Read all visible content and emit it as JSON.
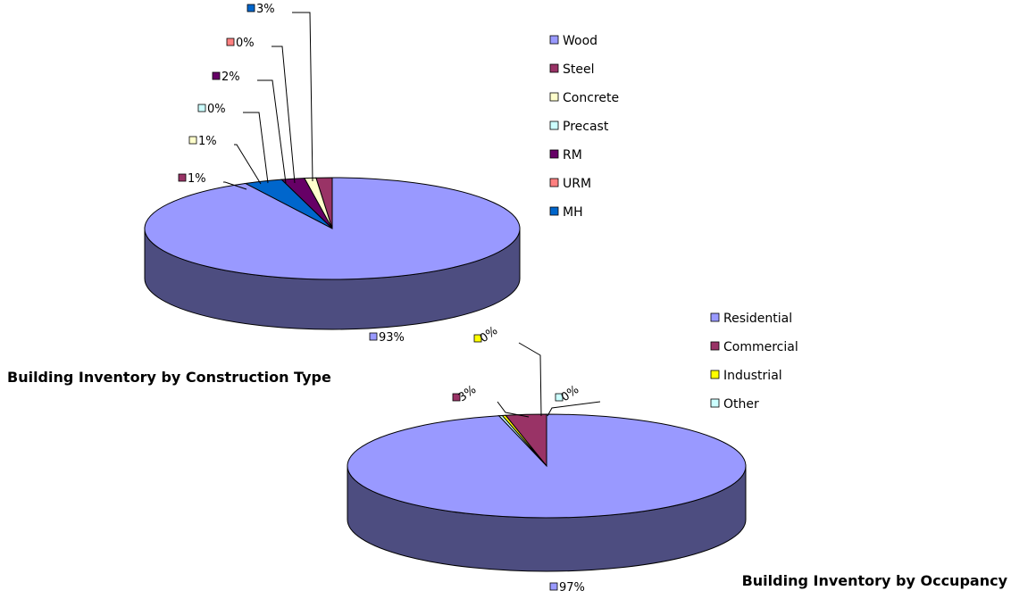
{
  "chart_data": [
    {
      "type": "pie",
      "title": "Building Inventory by Construction Type",
      "categories": [
        "Wood",
        "Steel",
        "Concrete",
        "Precast",
        "RM",
        "URM",
        "MH"
      ],
      "values": [
        93,
        1,
        1,
        0,
        2,
        0,
        3
      ],
      "labels": [
        "93%",
        "1%",
        "1%",
        "0%",
        "2%",
        "0%",
        "3%"
      ],
      "colors": [
        "#9999ff",
        "#993366",
        "#ffffcc",
        "#ccffff",
        "#660066",
        "#ff8080",
        "#0066cc"
      ],
      "legend_position": "right",
      "three_d": true
    },
    {
      "type": "pie",
      "title": "Building Inventory by Occupancy",
      "categories": [
        "Residential",
        "Commercial",
        "Industrial",
        "Other"
      ],
      "values": [
        97,
        3,
        0,
        0
      ],
      "labels": [
        "97%",
        "3%",
        "0%",
        "0%"
      ],
      "colors": [
        "#9999ff",
        "#993366",
        "#ffff00",
        "#ccffff"
      ],
      "legend_position": "right",
      "three_d": true
    }
  ]
}
